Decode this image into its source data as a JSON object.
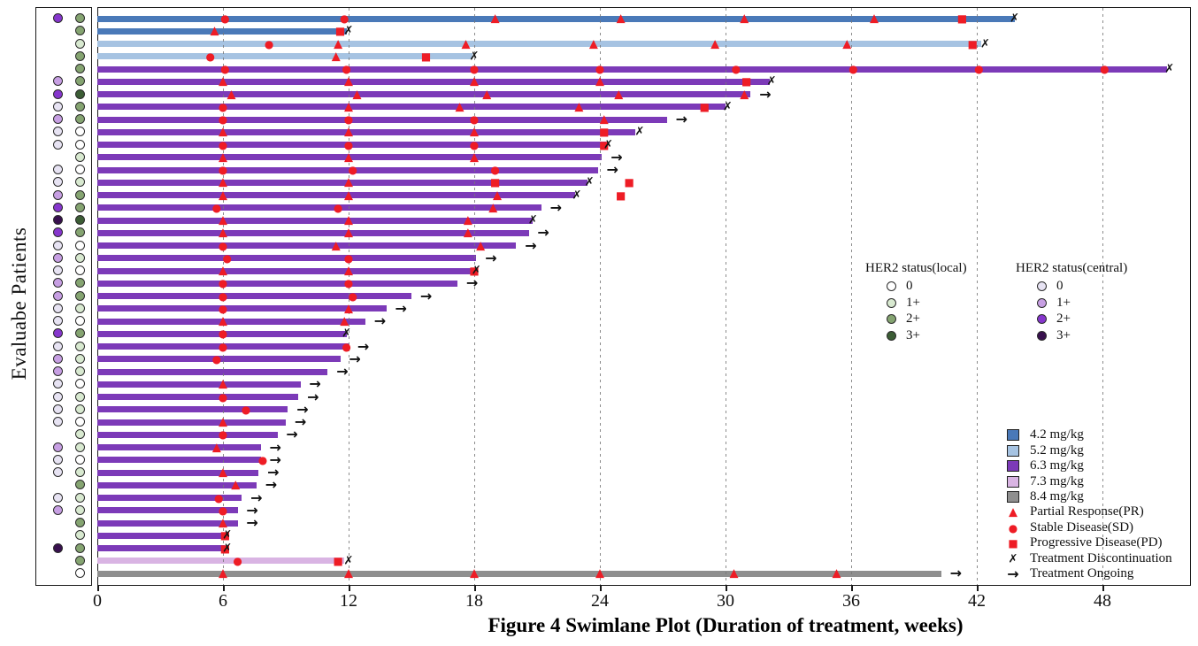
{
  "title": "Figure 4 Swimlane Plot (Duration of treatment, weeks)",
  "y_axis_label": "Evaluabe Patients",
  "colors": {
    "marker_red": "#ee1c25",
    "dose": {
      "4.2": "#4a79b8",
      "5.2": "#a6c3e2",
      "6.3": "#7c3ab8",
      "7.3": "#d9b4e3",
      "8.4": "#8f8f8f"
    },
    "her2_local": {
      "0": "#ffffff",
      "1+": "#d8e9d0",
      "2+": "#85a471",
      "3+": "#3c5d35"
    },
    "her2_central": {
      "0": "#e7e3f3",
      "1+": "#c79fe3",
      "2+": "#8636cd",
      "3+": "#38104e"
    }
  },
  "legend_local": {
    "title": "HER2 status(local)",
    "items": [
      {
        "label": "0",
        "key": "0"
      },
      {
        "label": "1+",
        "key": "1+"
      },
      {
        "label": "2+",
        "key": "2+"
      },
      {
        "label": "3+",
        "key": "3+"
      }
    ]
  },
  "legend_central": {
    "title": "HER2 status(central)",
    "items": [
      {
        "label": "0",
        "key": "0"
      },
      {
        "label": "1+",
        "key": "1+"
      },
      {
        "label": "2+",
        "key": "2+"
      },
      {
        "label": "3+",
        "key": "3+"
      }
    ]
  },
  "legend_dose": [
    {
      "label": "4.2 mg/kg",
      "key": "4.2"
    },
    {
      "label": "5.2 mg/kg",
      "key": "5.2"
    },
    {
      "label": "6.3 mg/kg",
      "key": "6.3"
    },
    {
      "label": "7.3 mg/kg",
      "key": "7.3"
    },
    {
      "label": "8.4 mg/kg",
      "key": "8.4"
    }
  ],
  "legend_markers": [
    {
      "type": "PR",
      "label": "Partial Response(PR)"
    },
    {
      "type": "SD",
      "label": "Stable Disease(SD)"
    },
    {
      "type": "PD",
      "label": "Progressive Disease(PD)"
    },
    {
      "type": "X",
      "label": "Treatment Discontinuation"
    },
    {
      "type": "arrow",
      "label": "Treatment Ongoing"
    }
  ],
  "chart_data": {
    "type": "swimlane",
    "x_unit": "weeks",
    "x_ticks": [
      0,
      6,
      12,
      18,
      24,
      30,
      36,
      42,
      48
    ],
    "x_gridlines": [
      6,
      12,
      18,
      24,
      30,
      36,
      42,
      48
    ],
    "rows": [
      {
        "dose": "4.2",
        "central": "2+",
        "local": "2+",
        "dur": 43.8,
        "ongoing": false,
        "events": [
          [
            "SD",
            6.1
          ],
          [
            "SD",
            11.8
          ],
          [
            "PR",
            19.0
          ],
          [
            "PR",
            25.0
          ],
          [
            "PR",
            30.9
          ],
          [
            "PR",
            37.1
          ],
          [
            "PD",
            41.3
          ],
          [
            "X",
            43.8
          ]
        ]
      },
      {
        "dose": "4.2",
        "central": null,
        "local": "2+",
        "dur": 11.9,
        "ongoing": false,
        "events": [
          [
            "PR",
            5.6
          ],
          [
            "PD",
            11.6
          ],
          [
            "X",
            12.0
          ]
        ]
      },
      {
        "dose": "5.2",
        "central": null,
        "local": "1+",
        "dur": 42.2,
        "ongoing": false,
        "events": [
          [
            "SD",
            8.2
          ],
          [
            "PR",
            11.5
          ],
          [
            "PR",
            17.6
          ],
          [
            "PR",
            23.7
          ],
          [
            "PR",
            29.5
          ],
          [
            "PR",
            35.8
          ],
          [
            "PD",
            41.8
          ],
          [
            "X",
            42.4
          ]
        ]
      },
      {
        "dose": "5.2",
        "central": null,
        "local": "2+",
        "dur": 17.9,
        "ongoing": false,
        "events": [
          [
            "SD",
            5.4
          ],
          [
            "PR",
            11.4
          ],
          [
            "PD",
            15.7
          ],
          [
            "X",
            18.0
          ]
        ]
      },
      {
        "dose": "6.3",
        "central": null,
        "local": "2+",
        "dur": 51.1,
        "ongoing": false,
        "events": [
          [
            "SD",
            6.1
          ],
          [
            "SD",
            11.9
          ],
          [
            "SD",
            18.0
          ],
          [
            "SD",
            24.0
          ],
          [
            "SD",
            30.5
          ],
          [
            "SD",
            36.1
          ],
          [
            "SD",
            42.1
          ],
          [
            "SD",
            48.1
          ],
          [
            "X",
            51.2
          ]
        ]
      },
      {
        "dose": "6.3",
        "central": "1+",
        "local": "2+",
        "dur": 32.1,
        "ongoing": false,
        "events": [
          [
            "PR",
            6.0
          ],
          [
            "PR",
            12.0
          ],
          [
            "PR",
            18.0
          ],
          [
            "PR",
            24.0
          ],
          [
            "PD",
            31.0
          ],
          [
            "X",
            32.2
          ]
        ]
      },
      {
        "dose": "6.3",
        "central": "2+",
        "local": "3+",
        "dur": 31.2,
        "ongoing": true,
        "events": [
          [
            "PR",
            6.4
          ],
          [
            "PR",
            12.4
          ],
          [
            "PR",
            18.6
          ],
          [
            "PR",
            24.9
          ],
          [
            "PR",
            30.9
          ]
        ]
      },
      {
        "dose": "6.3",
        "central": "0",
        "local": "2+",
        "dur": 30.0,
        "ongoing": false,
        "events": [
          [
            "SD",
            6.0
          ],
          [
            "PR",
            12.0
          ],
          [
            "PR",
            17.3
          ],
          [
            "PR",
            23.0
          ],
          [
            "PD",
            29.0
          ],
          [
            "X",
            30.1
          ]
        ]
      },
      {
        "dose": "6.3",
        "central": "1+",
        "local": "2+",
        "dur": 27.2,
        "ongoing": true,
        "events": [
          [
            "SD",
            6.0
          ],
          [
            "SD",
            12.0
          ],
          [
            "SD",
            18.0
          ],
          [
            "PR",
            24.2
          ]
        ]
      },
      {
        "dose": "6.3",
        "central": "0",
        "local": "0",
        "dur": 25.7,
        "ongoing": false,
        "events": [
          [
            "PR",
            6.0
          ],
          [
            "PR",
            12.0
          ],
          [
            "PR",
            18.0
          ],
          [
            "PD",
            24.2
          ],
          [
            "X",
            25.9
          ]
        ]
      },
      {
        "dose": "6.3",
        "central": "0",
        "local": "0",
        "dur": 24.3,
        "ongoing": false,
        "events": [
          [
            "SD",
            6.0
          ],
          [
            "SD",
            12.0
          ],
          [
            "SD",
            18.0
          ],
          [
            "PD",
            24.2
          ],
          [
            "X",
            24.4
          ]
        ]
      },
      {
        "dose": "6.3",
        "central": null,
        "local": "1+",
        "dur": 24.1,
        "ongoing": true,
        "events": [
          [
            "PR",
            6.0
          ],
          [
            "PR",
            12.0
          ],
          [
            "PR",
            18.0
          ]
        ]
      },
      {
        "dose": "6.3",
        "central": "0",
        "local": "0",
        "dur": 23.9,
        "ongoing": true,
        "events": [
          [
            "SD",
            6.0
          ],
          [
            "SD",
            12.2
          ],
          [
            "SD",
            19.0
          ]
        ]
      },
      {
        "dose": "6.3",
        "central": "0",
        "local": "1+",
        "dur": 23.4,
        "ongoing": false,
        "events": [
          [
            "PR",
            6.0
          ],
          [
            "PR",
            12.0
          ],
          [
            "PD",
            19.0
          ],
          [
            "X",
            23.5
          ],
          [
            "PD",
            25.4
          ]
        ]
      },
      {
        "dose": "6.3",
        "central": "1+",
        "local": "2+",
        "dur": 22.8,
        "ongoing": false,
        "events": [
          [
            "PR",
            6.0
          ],
          [
            "PR",
            12.0
          ],
          [
            "PR",
            19.1
          ],
          [
            "X",
            22.9
          ],
          [
            "PD",
            25.0
          ]
        ]
      },
      {
        "dose": "6.3",
        "central": "2+",
        "local": "2+",
        "dur": 21.2,
        "ongoing": true,
        "events": [
          [
            "SD",
            5.7
          ],
          [
            "SD",
            11.5
          ],
          [
            "PR",
            18.9
          ]
        ]
      },
      {
        "dose": "6.3",
        "central": "3+",
        "local": "3+",
        "dur": 20.8,
        "ongoing": false,
        "events": [
          [
            "PR",
            6.0
          ],
          [
            "PR",
            12.0
          ],
          [
            "PR",
            17.7
          ],
          [
            "X",
            20.8
          ]
        ]
      },
      {
        "dose": "6.3",
        "central": "2+",
        "local": "2+",
        "dur": 20.6,
        "ongoing": true,
        "events": [
          [
            "PR",
            6.0
          ],
          [
            "PR",
            12.0
          ],
          [
            "PR",
            17.7
          ]
        ]
      },
      {
        "dose": "6.3",
        "central": "0",
        "local": "0",
        "dur": 20.0,
        "ongoing": true,
        "events": [
          [
            "SD",
            6.0
          ],
          [
            "PR",
            11.4
          ],
          [
            "PR",
            18.3
          ]
        ]
      },
      {
        "dose": "6.3",
        "central": "1+",
        "local": "1+",
        "dur": 18.1,
        "ongoing": true,
        "events": [
          [
            "SD",
            6.2
          ],
          [
            "SD",
            12.0
          ]
        ]
      },
      {
        "dose": "6.3",
        "central": "0",
        "local": "0",
        "dur": 18.1,
        "ongoing": false,
        "events": [
          [
            "PR",
            6.0
          ],
          [
            "PR",
            12.0
          ],
          [
            "PD",
            18.0
          ],
          [
            "X",
            18.1
          ]
        ]
      },
      {
        "dose": "6.3",
        "central": "1+",
        "local": "2+",
        "dur": 17.2,
        "ongoing": true,
        "events": [
          [
            "SD",
            6.0
          ],
          [
            "SD",
            12.0
          ]
        ]
      },
      {
        "dose": "6.3",
        "central": "1+",
        "local": "2+",
        "dur": 15.0,
        "ongoing": true,
        "events": [
          [
            "SD",
            6.0
          ],
          [
            "SD",
            12.2
          ]
        ]
      },
      {
        "dose": "6.3",
        "central": "0",
        "local": "1+",
        "dur": 13.8,
        "ongoing": true,
        "events": [
          [
            "SD",
            6.0
          ],
          [
            "PR",
            12.0
          ]
        ]
      },
      {
        "dose": "6.3",
        "central": "0",
        "local": "0",
        "dur": 12.8,
        "ongoing": true,
        "events": [
          [
            "PR",
            6.0
          ],
          [
            "PR",
            11.8
          ]
        ]
      },
      {
        "dose": "6.3",
        "central": "2+",
        "local": "2+",
        "dur": 11.9,
        "ongoing": false,
        "events": [
          [
            "SD",
            6.0
          ],
          [
            "X",
            11.9
          ]
        ]
      },
      {
        "dose": "6.3",
        "central": "0",
        "local": "1+",
        "dur": 12.0,
        "ongoing": true,
        "events": [
          [
            "SD",
            6.0
          ],
          [
            "SD",
            11.9
          ]
        ]
      },
      {
        "dose": "6.3",
        "central": "1+",
        "local": "1+",
        "dur": 11.6,
        "ongoing": true,
        "events": [
          [
            "SD",
            5.7
          ]
        ]
      },
      {
        "dose": "6.3",
        "central": "1+",
        "local": "1+",
        "dur": 11.0,
        "ongoing": true,
        "events": []
      },
      {
        "dose": "6.3",
        "central": "0",
        "local": "0",
        "dur": 9.7,
        "ongoing": true,
        "events": [
          [
            "PR",
            6.0
          ]
        ]
      },
      {
        "dose": "6.3",
        "central": "0",
        "local": "1+",
        "dur": 9.6,
        "ongoing": true,
        "events": [
          [
            "SD",
            6.0
          ]
        ]
      },
      {
        "dose": "6.3",
        "central": "0",
        "local": "1+",
        "dur": 9.1,
        "ongoing": true,
        "events": [
          [
            "SD",
            7.1
          ]
        ]
      },
      {
        "dose": "6.3",
        "central": "0",
        "local": "0",
        "dur": 9.0,
        "ongoing": true,
        "events": [
          [
            "PR",
            6.0
          ]
        ]
      },
      {
        "dose": "6.3",
        "central": null,
        "local": "1+",
        "dur": 8.6,
        "ongoing": true,
        "events": [
          [
            "SD",
            6.0
          ]
        ]
      },
      {
        "dose": "6.3",
        "central": "1+",
        "local": "1+",
        "dur": 7.8,
        "ongoing": true,
        "events": [
          [
            "PR",
            5.7
          ]
        ]
      },
      {
        "dose": "6.3",
        "central": "0",
        "local": "0",
        "dur": 7.8,
        "ongoing": true,
        "events": [
          [
            "SD",
            7.9
          ]
        ]
      },
      {
        "dose": "6.3",
        "central": "0",
        "local": "1+",
        "dur": 7.7,
        "ongoing": true,
        "events": [
          [
            "PR",
            6.0
          ]
        ]
      },
      {
        "dose": "6.3",
        "central": null,
        "local": "2+",
        "dur": 7.6,
        "ongoing": true,
        "events": [
          [
            "PR",
            6.6
          ]
        ]
      },
      {
        "dose": "6.3",
        "central": "0",
        "local": "1+",
        "dur": 6.9,
        "ongoing": true,
        "events": [
          [
            "SD",
            5.8
          ]
        ]
      },
      {
        "dose": "6.3",
        "central": "1+",
        "local": "1+",
        "dur": 6.7,
        "ongoing": true,
        "events": [
          [
            "SD",
            6.0
          ]
        ]
      },
      {
        "dose": "6.3",
        "central": null,
        "local": "2+",
        "dur": 6.7,
        "ongoing": true,
        "events": [
          [
            "PR",
            6.0
          ]
        ]
      },
      {
        "dose": "6.3",
        "central": null,
        "local": "1+",
        "dur": 6.1,
        "ongoing": false,
        "events": [
          [
            "PD",
            6.1
          ],
          [
            "X",
            6.2
          ]
        ]
      },
      {
        "dose": "6.3",
        "central": "3+",
        "local": "2+",
        "dur": 6.1,
        "ongoing": false,
        "events": [
          [
            "PD",
            6.1
          ],
          [
            "X",
            6.2
          ]
        ]
      },
      {
        "dose": "7.3",
        "central": null,
        "local": "2+",
        "dur": 11.8,
        "ongoing": false,
        "events": [
          [
            "SD",
            6.7
          ],
          [
            "PD",
            11.5
          ],
          [
            "X",
            12.0
          ]
        ]
      },
      {
        "dose": "8.4",
        "central": null,
        "local": "0",
        "dur": 40.3,
        "ongoing": true,
        "events": [
          [
            "PR",
            6.0
          ],
          [
            "PR",
            12.0
          ],
          [
            "PR",
            18.0
          ],
          [
            "PR",
            24.0
          ],
          [
            "PR",
            30.4
          ],
          [
            "PR",
            35.3
          ]
        ]
      }
    ]
  }
}
